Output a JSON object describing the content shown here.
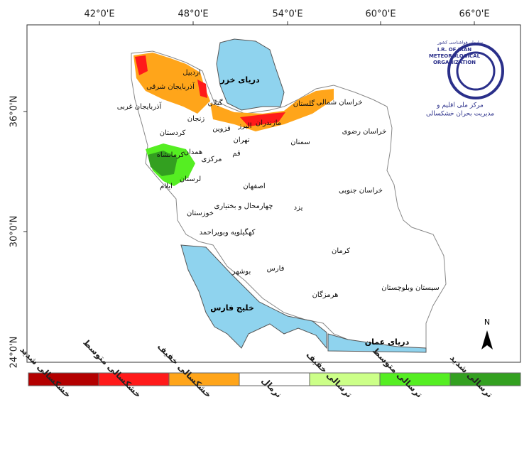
{
  "axes": {
    "top": [
      "42°0'E",
      "48°0'E",
      "54°0'E",
      "60°0'E",
      "66°0'E"
    ],
    "left": [
      "36°0'N",
      "30°0'N",
      "24°0'N"
    ]
  },
  "logo": {
    "org_fa": "سازمان هواشناسی کشور",
    "org_en_1": "I.R. OF IRAN",
    "org_en_2": "METEOROLOGICAL",
    "org_en_3": "ORGANIZATION",
    "center_1": "مرکز ملی اقلیم و",
    "center_2": "مدیریت بحران خشکسالی"
  },
  "north": "N",
  "seas": [
    "دریای خزر",
    "خلیج فارس",
    "دریای عمان"
  ],
  "provinces": [
    "اردبیل",
    "آذربایجان شرقی",
    "آذربایجان غربی",
    "گیلان",
    "مازندران",
    "البرز",
    "گلستان",
    "خراسان شمالی",
    "زنجان",
    "قزوین",
    "تهران",
    "کردستان",
    "همدان",
    "قم",
    "مرکزی",
    "کرمانشاه",
    "لرستان",
    "ایلام",
    "سمنان",
    "خراسان رضوی",
    "خراسان جنوبی",
    "اصفهان",
    "یزد",
    "چهارمحال و بختیاری",
    "خوزستان",
    "کهگیلویه وبویراحمد",
    "کرمان",
    "بوشهر",
    "فارس",
    "هرمزگان",
    "سیستان وبلوچستان"
  ],
  "legend": [
    {
      "label": "خشکسالی شدید",
      "color": "#b30000"
    },
    {
      "label": "خشکسالی متوسط",
      "color": "#ff1a1a"
    },
    {
      "label": "خشکسالی خفیف",
      "color": "#ffa51a"
    },
    {
      "label": "نرمال",
      "color": "#ffffff"
    },
    {
      "label": "ترسالی خفیف",
      "color": "#ccff88"
    },
    {
      "label": "ترسالی متوسط",
      "color": "#55ee22"
    },
    {
      "label": "ترسالی شدید",
      "color": "#33a020"
    }
  ]
}
